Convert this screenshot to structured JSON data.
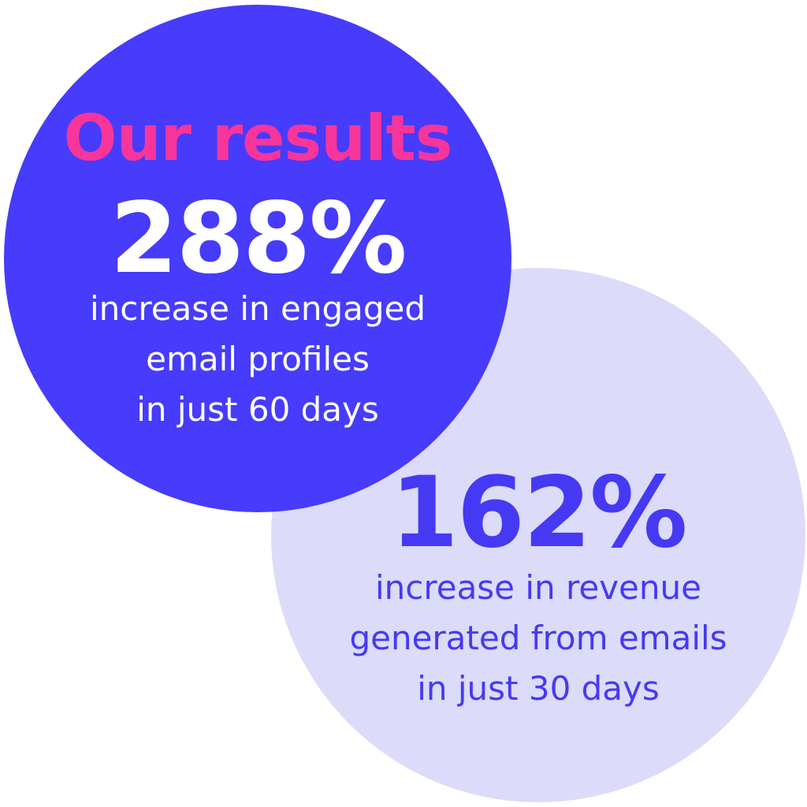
{
  "colors": {
    "primary_circle": "#473bfc",
    "secondary_circle": "#dcdbf9",
    "heading_accent": "#f7359b",
    "primary_text": "#ffffff",
    "secondary_text": "#4639f4",
    "background": "#ffffff"
  },
  "heading": "Our results",
  "stats": [
    {
      "value": "288%",
      "description_lines": [
        "increase in engaged",
        "email profiles",
        "in just 60 days"
      ]
    },
    {
      "value": "162%",
      "description_lines": [
        "increase in revenue",
        "generated from emails",
        "in just 30 days"
      ]
    }
  ]
}
